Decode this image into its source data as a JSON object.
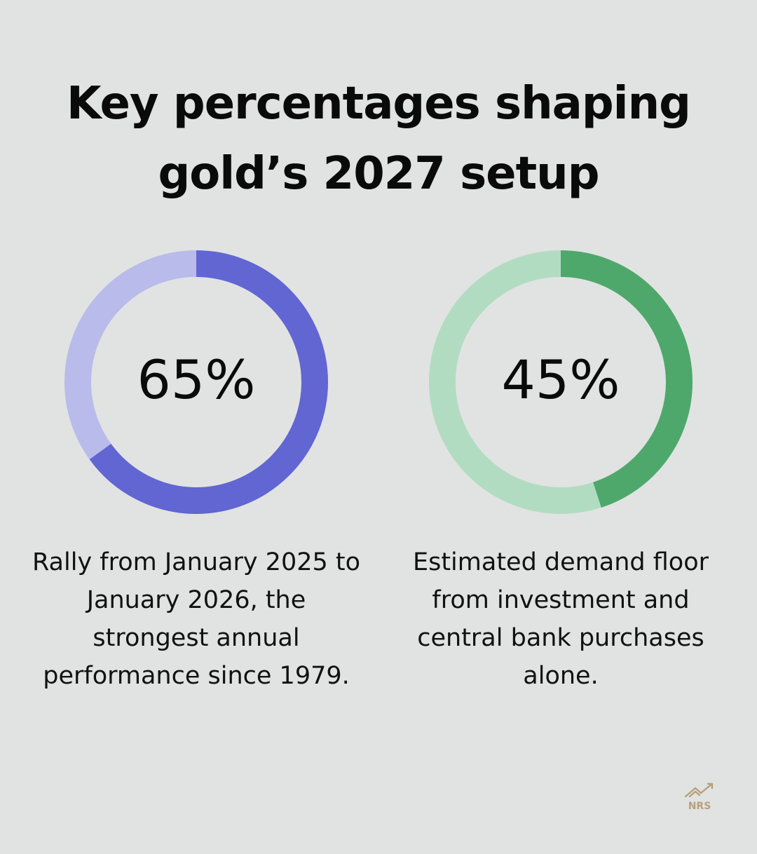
{
  "title_lines": [
    "Key percentages shaping",
    "gold’s 2027 setup"
  ],
  "logo_text": "NRS",
  "colors": {
    "background": "#e1e3e2",
    "logo": "#b8a07a"
  },
  "chart_data": [
    {
      "type": "pie",
      "value": 65,
      "label": "65%",
      "description": "Rally from January 2025 to January 2026, the strongest annual performance since 1979.",
      "color": "#6166d3",
      "track_color": "#b9bbea"
    },
    {
      "type": "pie",
      "value": 45,
      "label": "45%",
      "description": "Estimated demand floor from investment and central bank purchases alone.",
      "color": "#4ea86b",
      "track_color": "#b2dcc1"
    }
  ]
}
